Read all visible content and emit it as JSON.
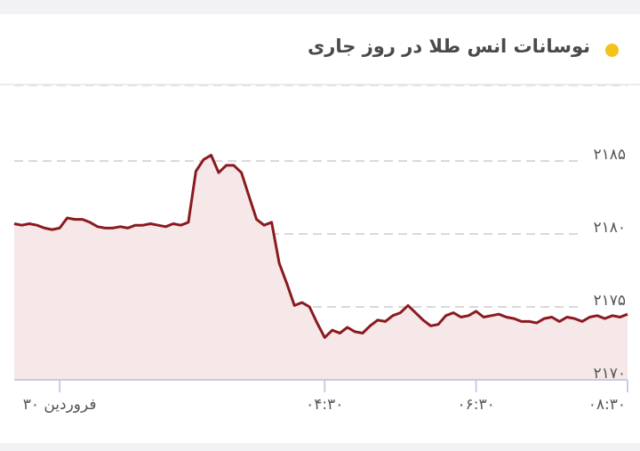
{
  "header": {
    "title": "نوسانات انس طلا در روز جاری",
    "bullet_color": "#f3c317"
  },
  "chart_data": {
    "type": "area",
    "title": "نوسانات انس طلا در روز جاری",
    "xlabel": "",
    "ylabel": "",
    "line_color": "#8b1a1f",
    "fill_color": "#f6e8e9",
    "grid": true,
    "ylim": [
      2170,
      2187
    ],
    "y_ticks": [
      {
        "value": 2170,
        "label": "۲۱۷۰"
      },
      {
        "value": 2175,
        "label": "۲۱۷۵"
      },
      {
        "value": 2180,
        "label": "۲۱۸۰"
      },
      {
        "value": 2185,
        "label": "۲۱۸۵"
      }
    ],
    "x_ticks": [
      {
        "value": 1,
        "label": "۳۰ فروردین"
      },
      {
        "value": 4.5,
        "label": "۰۴:۳۰"
      },
      {
        "value": 6.5,
        "label": "۰۶:۳۰"
      },
      {
        "value": 8.5,
        "label": "۰۸:۳۰"
      }
    ],
    "xlim": [
      0.4,
      8.5
    ],
    "x": [
      0.4,
      0.5,
      0.6,
      0.7,
      0.8,
      0.9,
      1.0,
      1.1,
      1.2,
      1.3,
      1.4,
      1.5,
      1.6,
      1.7,
      1.8,
      1.9,
      2.0,
      2.1,
      2.2,
      2.3,
      2.4,
      2.5,
      2.6,
      2.7,
      2.8,
      2.9,
      3.0,
      3.1,
      3.2,
      3.3,
      3.4,
      3.5,
      3.6,
      3.7,
      3.8,
      3.9,
      4.0,
      4.1,
      4.2,
      4.3,
      4.4,
      4.5,
      4.6,
      4.7,
      4.8,
      4.9,
      5.0,
      5.1,
      5.2,
      5.3,
      5.4,
      5.5,
      5.6,
      5.7,
      5.8,
      5.9,
      6.0,
      6.1,
      6.2,
      6.3,
      6.4,
      6.5,
      6.6,
      6.7,
      6.8,
      6.9,
      7.0,
      7.1,
      7.2,
      7.3,
      7.4,
      7.5,
      7.6,
      7.7,
      7.8,
      7.9,
      8.0,
      8.1,
      8.2,
      8.3,
      8.4,
      8.5
    ],
    "y": [
      2180.7,
      2180.6,
      2180.7,
      2180.6,
      2180.4,
      2180.3,
      2180.4,
      2181.1,
      2181.0,
      2181.0,
      2180.8,
      2180.5,
      2180.4,
      2180.4,
      2180.5,
      2180.4,
      2180.6,
      2180.6,
      2180.7,
      2180.6,
      2180.5,
      2180.7,
      2180.6,
      2180.8,
      2184.3,
      2185.1,
      2185.4,
      2184.2,
      2184.7,
      2184.7,
      2184.2,
      2182.6,
      2181.0,
      2180.6,
      2180.8,
      2178.0,
      2176.6,
      2175.1,
      2175.3,
      2175.0,
      2173.9,
      2172.9,
      2173.4,
      2173.2,
      2173.6,
      2173.3,
      2173.2,
      2173.7,
      2174.1,
      2174.0,
      2174.4,
      2174.6,
      2175.1,
      2174.6,
      2174.1,
      2173.7,
      2173.8,
      2174.4,
      2174.6,
      2174.3,
      2174.4,
      2174.7,
      2174.3,
      2174.4,
      2174.5,
      2174.3,
      2174.2,
      2174.0,
      2174.0,
      2173.9,
      2174.2,
      2174.3,
      2174.0,
      2174.3,
      2174.2,
      2174.0,
      2174.3,
      2174.4,
      2174.2,
      2174.4,
      2174.3,
      2174.5
    ]
  }
}
